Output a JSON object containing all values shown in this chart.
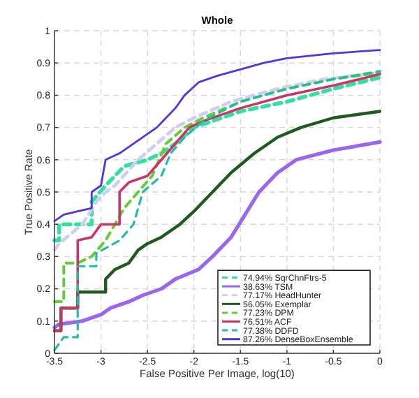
{
  "chart_data": {
    "type": "line",
    "title": "Whole",
    "xlabel": "False Positive Per Image, log(10)",
    "ylabel": "True Positive Rate",
    "xlim": [
      -3.5,
      0
    ],
    "ylim": [
      0,
      1
    ],
    "xticks": [
      -3.5,
      -3,
      -2.5,
      -2,
      -1.5,
      -1,
      -0.5,
      0
    ],
    "yticks": [
      0,
      0.1,
      0.2,
      0.3,
      0.4,
      0.5,
      0.6,
      0.7,
      0.8,
      0.9,
      1
    ],
    "grid": true,
    "legend": "bottom right",
    "series": [
      {
        "name": "74.94% SqrChnFtrs-5",
        "color": "#33e0a0",
        "line_style": "dashed",
        "x": [
          -3.5,
          -3.45,
          -3.45,
          -3.1,
          -3.1,
          -2.95,
          -2.75,
          -2.5,
          -2.35,
          -2.2,
          -2,
          -1.8,
          -1.5,
          -1,
          -0.5,
          0
        ],
        "values": [
          0.35,
          0.35,
          0.4,
          0.4,
          0.47,
          0.52,
          0.58,
          0.6,
          0.62,
          0.65,
          0.7,
          0.72,
          0.75,
          0.78,
          0.82,
          0.855
        ]
      },
      {
        "name": "38.63% TSM",
        "color": "#9966ee",
        "line_style": "solid",
        "x": [
          -3.5,
          -3.45,
          -3.2,
          -3,
          -2.9,
          -2.7,
          -2.55,
          -2.35,
          -2.2,
          -1.95,
          -1.8,
          -1.6,
          -1.45,
          -1.3,
          -1.1,
          -0.9,
          -0.5,
          0
        ],
        "values": [
          0.08,
          0.09,
          0.1,
          0.12,
          0.14,
          0.16,
          0.18,
          0.2,
          0.23,
          0.26,
          0.3,
          0.36,
          0.43,
          0.5,
          0.56,
          0.6,
          0.63,
          0.655
        ]
      },
      {
        "name": "77.17% HeadHunter",
        "color": "#ccd0f5",
        "line_style": "dashed",
        "x": [
          -3.5,
          -3.45,
          -3.2,
          -3.05,
          -2.95,
          -2.85,
          -2.6,
          -2.4,
          -2.2,
          -2,
          -1.6,
          -1.1,
          -0.6,
          0
        ],
        "values": [
          0.32,
          0.34,
          0.4,
          0.47,
          0.5,
          0.52,
          0.6,
          0.65,
          0.7,
          0.73,
          0.78,
          0.82,
          0.85,
          0.87
        ]
      },
      {
        "name": "56.05% Exemplar",
        "color": "#1f5a1f",
        "line_style": "solid",
        "x": [
          -3.5,
          -3.43,
          -3.43,
          -3.25,
          -3.25,
          -2.95,
          -2.95,
          -2.85,
          -2.7,
          -2.6,
          -2.5,
          -2.35,
          -2.15,
          -2,
          -1.8,
          -1.6,
          -1.35,
          -1.1,
          -0.85,
          -0.5,
          0
        ],
        "values": [
          0.07,
          0.07,
          0.14,
          0.14,
          0.19,
          0.19,
          0.23,
          0.26,
          0.28,
          0.32,
          0.34,
          0.36,
          0.4,
          0.44,
          0.5,
          0.56,
          0.62,
          0.67,
          0.7,
          0.73,
          0.75
        ]
      },
      {
        "name": "77.23% DPM",
        "color": "#66cc33",
        "line_style": "dashed",
        "x": [
          -3.5,
          -3.4,
          -3.4,
          -3.25,
          -3.1,
          -2.95,
          -2.85,
          -2.75,
          -2.6,
          -2.45,
          -2.3,
          -2.1,
          -1.9,
          -1.5,
          -1,
          -0.5,
          0
        ],
        "values": [
          0.16,
          0.16,
          0.28,
          0.28,
          0.3,
          0.35,
          0.4,
          0.45,
          0.5,
          0.55,
          0.65,
          0.7,
          0.73,
          0.78,
          0.82,
          0.85,
          0.87
        ]
      },
      {
        "name": "76.51% ACF",
        "color": "#cc3366",
        "line_style": "solid",
        "x": [
          -3.5,
          -3.43,
          -3.43,
          -3.25,
          -3.25,
          -3.1,
          -3,
          -2.8,
          -2.8,
          -2.7,
          -2.5,
          -2.35,
          -2.2,
          -2.05,
          -1.9,
          -1.5,
          -1,
          -0.5,
          0
        ],
        "values": [
          0.07,
          0.07,
          0.14,
          0.14,
          0.35,
          0.36,
          0.4,
          0.4,
          0.5,
          0.53,
          0.55,
          0.6,
          0.65,
          0.7,
          0.72,
          0.76,
          0.8,
          0.83,
          0.865
        ]
      },
      {
        "name": "77.38% DDFD",
        "color": "#22bbaa",
        "line_style": "dashed",
        "x": [
          -3.5,
          -3.4,
          -3.25,
          -3.25,
          -3.05,
          -3.05,
          -2.8,
          -2.65,
          -2.55,
          -2.35,
          -2.25,
          -2.1,
          -1.9,
          -1.5,
          -1,
          -0.5,
          0
        ],
        "values": [
          0.01,
          0.05,
          0.05,
          0.27,
          0.27,
          0.31,
          0.35,
          0.4,
          0.5,
          0.55,
          0.62,
          0.67,
          0.72,
          0.78,
          0.82,
          0.85,
          0.875
        ]
      },
      {
        "name": "87.26% DenseBoxEnsemble",
        "color": "#5533dd",
        "line_style": "solid",
        "x": [
          -3.5,
          -3.4,
          -3.25,
          -3.1,
          -3.1,
          -3,
          -2.95,
          -2.8,
          -2.7,
          -2.6,
          -2.5,
          -2.4,
          -2.3,
          -2.2,
          -2.1,
          -1.95,
          -1.75,
          -1.5,
          -1.25,
          -1,
          -0.5,
          0
        ],
        "values": [
          0.41,
          0.43,
          0.44,
          0.45,
          0.5,
          0.52,
          0.6,
          0.62,
          0.64,
          0.66,
          0.68,
          0.7,
          0.73,
          0.76,
          0.8,
          0.84,
          0.86,
          0.88,
          0.9,
          0.915,
          0.93,
          0.94
        ]
      }
    ]
  }
}
